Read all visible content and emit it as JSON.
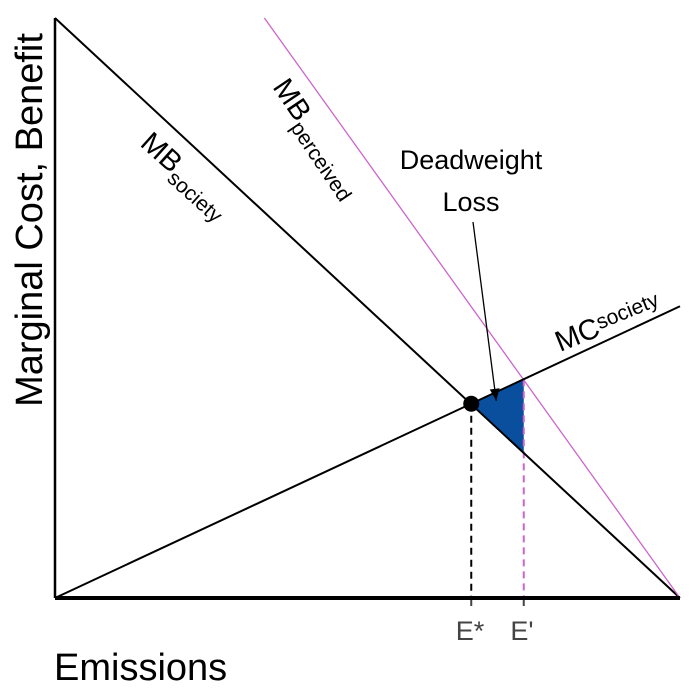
{
  "chart_data": {
    "type": "line",
    "xlabel": "Emissions",
    "ylabel": "Marginal Cost, Benefit",
    "xlim": [
      0,
      100
    ],
    "ylim": [
      0,
      100
    ],
    "series": [
      {
        "id": "mb_society",
        "label_main": "MB",
        "label_sub": "society",
        "color": "#000000",
        "x": [
          0,
          100
        ],
        "y": [
          100,
          0
        ]
      },
      {
        "id": "mb_perceived",
        "label_main": "MB",
        "label_sub": "perceived",
        "color": "#cc66cc",
        "x": [
          33.5,
          100
        ],
        "y": [
          100,
          0
        ]
      },
      {
        "id": "mc_society",
        "label_main": "MC",
        "label_sub": "society",
        "color": "#000000",
        "x": [
          0,
          100
        ],
        "y": [
          0,
          50.3
        ]
      }
    ],
    "equilibrium": {
      "x": 66.6,
      "y": 33.5
    },
    "perceived_equilibrium": {
      "x": 75,
      "y": 37.7
    },
    "x_ticks": [
      {
        "label": "E*",
        "x": 66.6,
        "line_color": "#000000"
      },
      {
        "label": "E'",
        "x": 75,
        "line_color": "#cc66cc"
      }
    ],
    "deadweight_loss": {
      "label_line1": "Deadweight",
      "label_line2": "Loss",
      "fill": "#0a4f9e",
      "vertices": [
        [
          66.6,
          33.5
        ],
        [
          75,
          37.7
        ],
        [
          75,
          25
        ]
      ]
    }
  }
}
